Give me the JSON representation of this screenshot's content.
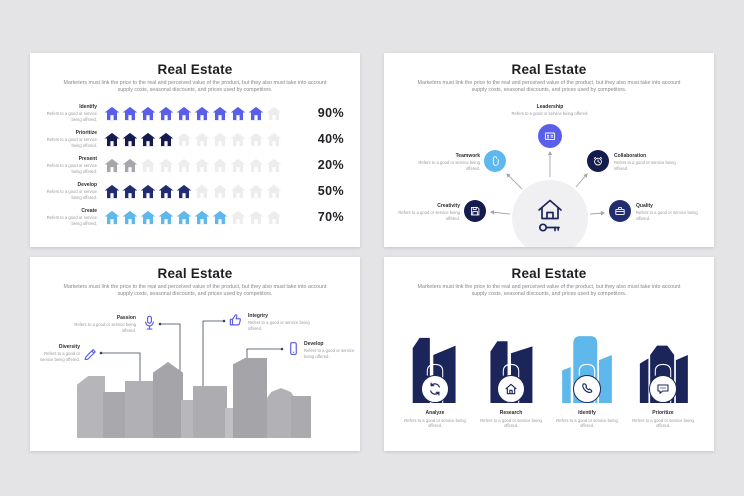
{
  "shared": {
    "title": "Real Estate",
    "subtitle": "Marketers must link the price to the real and perceived value of the product, but they also must take into account supply costs, seasonal discounts, and prices used by competitors.",
    "item_description": "Refers to a good or service being offered."
  },
  "colors": {
    "page_bg": "#e4e4e6",
    "slide_bg": "#ffffff",
    "violet": "#5a5fea",
    "dark_navy": "#141b4d",
    "navy": "#212d6f",
    "light_blue": "#5fb8ec",
    "gray": "#a6a6ab",
    "empty_house": "#ededef",
    "building_navy": "#1b2559",
    "line": "#3a4458"
  },
  "slide1": {
    "type": "pictograph",
    "icons_per_row": 10,
    "rows": [
      {
        "label": "Identify",
        "percent": "90%",
        "value": 90,
        "color": "#5a5fea"
      },
      {
        "label": "Prioritize",
        "percent": "40%",
        "value": 40,
        "color": "#141b4d"
      },
      {
        "label": "Present",
        "percent": "20%",
        "value": 20,
        "color": "#a6a6ab"
      },
      {
        "label": "Develop",
        "percent": "50%",
        "value": 50,
        "color": "#212d6f"
      },
      {
        "label": "Create",
        "percent": "70%",
        "value": 70,
        "color": "#5fb8ec"
      }
    ]
  },
  "slide2": {
    "type": "hub-spoke-diagram",
    "center_icon": "house-key-icon",
    "nodes": [
      {
        "label": "Leadership",
        "icon": "id-card-icon",
        "color": "#5a5fea"
      },
      {
        "label": "Teamwork",
        "icon": "paperclip-icon",
        "color": "#5fb8ec"
      },
      {
        "label": "Collaboration",
        "icon": "alarm-clock-icon",
        "color": "#141b4d"
      },
      {
        "label": "Creativity",
        "icon": "floppy-disk-icon",
        "color": "#141b4d"
      },
      {
        "label": "Quality",
        "icon": "briefcase-icon",
        "color": "#212d6f"
      }
    ]
  },
  "slide3": {
    "type": "skyline-callouts",
    "callouts": [
      {
        "label": "Passion",
        "icon": "microphone-icon"
      },
      {
        "label": "Integriry",
        "icon": "thumbs-up-icon"
      },
      {
        "label": "Diversity",
        "icon": "pencil-icon"
      },
      {
        "label": "Develop",
        "icon": "smartphone-icon"
      }
    ]
  },
  "slide4": {
    "type": "building-steps",
    "groups": [
      {
        "label": "Analyze",
        "icon": "refresh-icon",
        "color": "#1b2559"
      },
      {
        "label": "Research",
        "icon": "house-icon",
        "color": "#1b2559"
      },
      {
        "label": "Identify",
        "icon": "phone-icon",
        "color": "#5fb8ec"
      },
      {
        "label": "Prioritize",
        "icon": "chat-icon",
        "color": "#1b2559"
      }
    ]
  }
}
